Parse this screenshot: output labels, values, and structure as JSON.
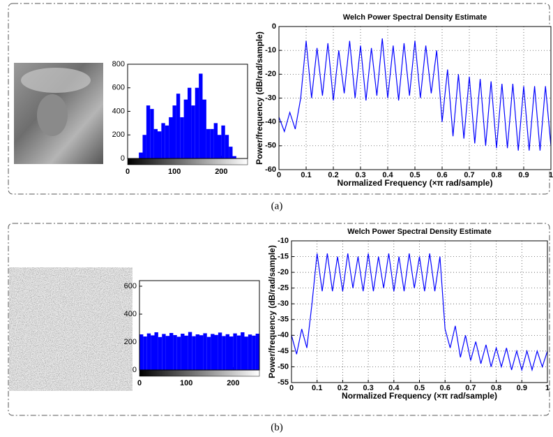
{
  "captions": [
    "(a)",
    "(b)"
  ],
  "chart_data": [
    {
      "type": "histogram",
      "color": "#0000ff",
      "bins": [
        0,
        8,
        16,
        24,
        32,
        40,
        48,
        56,
        64,
        72,
        80,
        88,
        96,
        104,
        112,
        120,
        128,
        136,
        144,
        152,
        160,
        168,
        176,
        184,
        192,
        200,
        208,
        216,
        224,
        232,
        240,
        248,
        256
      ],
      "values": [
        0,
        0,
        0,
        50,
        200,
        450,
        420,
        250,
        230,
        300,
        280,
        350,
        450,
        550,
        350,
        500,
        600,
        450,
        600,
        720,
        500,
        250,
        250,
        300,
        200,
        280,
        200,
        100,
        20,
        0,
        0,
        0
      ],
      "xlim": [
        0,
        256
      ],
      "xticks": [
        0,
        100,
        200
      ],
      "ylim": [
        0,
        800
      ],
      "yticks": [
        0,
        200,
        400,
        600,
        800
      ]
    },
    {
      "type": "line",
      "color": "#0000ff",
      "grid": true,
      "title": "Welch Power Spectral Density Estimate",
      "x_label": "Normalized Frequency  (×π rad/sample)",
      "y_label": "Power/frequency (dB/rad/sample)",
      "x": [
        0,
        0.02,
        0.04,
        0.06,
        0.08,
        0.1,
        0.12,
        0.14,
        0.16,
        0.18,
        0.2,
        0.22,
        0.24,
        0.26,
        0.28,
        0.3,
        0.32,
        0.34,
        0.36,
        0.38,
        0.4,
        0.42,
        0.44,
        0.46,
        0.48,
        0.5,
        0.52,
        0.54,
        0.56,
        0.58,
        0.6,
        0.62,
        0.64,
        0.66,
        0.68,
        0.7,
        0.72,
        0.74,
        0.76,
        0.78,
        0.8,
        0.82,
        0.84,
        0.86,
        0.88,
        0.9,
        0.92,
        0.94,
        0.96,
        0.98,
        1
      ],
      "values": [
        -38,
        -44,
        -36,
        -43,
        -30,
        -6,
        -30,
        -9,
        -29,
        -7,
        -31,
        -10,
        -28,
        -6,
        -30,
        -8,
        -31,
        -9,
        -29,
        -5,
        -30,
        -8,
        -31,
        -7,
        -29,
        -6,
        -30,
        -8,
        -28,
        -10,
        -40,
        -18,
        -46,
        -20,
        -47,
        -21,
        -49,
        -22,
        -50,
        -23,
        -51,
        -24,
        -51,
        -24,
        -52,
        -25,
        -52,
        -25,
        -52,
        -25,
        -50
      ],
      "xlim": [
        0,
        1
      ],
      "xticks": [
        0,
        0.1,
        0.2,
        0.3,
        0.4,
        0.5,
        0.6,
        0.7,
        0.8,
        0.9,
        1
      ],
      "ylim": [
        -60,
        0
      ],
      "yticks": [
        -60,
        -50,
        -40,
        -30,
        -20,
        -10,
        0
      ]
    },
    {
      "type": "histogram",
      "color": "#0000ff",
      "bins": [
        0,
        8,
        16,
        24,
        32,
        40,
        48,
        56,
        64,
        72,
        80,
        88,
        96,
        104,
        112,
        120,
        128,
        136,
        144,
        152,
        160,
        168,
        176,
        184,
        192,
        200,
        208,
        216,
        224,
        232,
        240,
        248,
        256
      ],
      "values": [
        255,
        240,
        262,
        248,
        270,
        236,
        258,
        244,
        265,
        250,
        238,
        260,
        246,
        272,
        242,
        255,
        249,
        263,
        237,
        258,
        251,
        268,
        243,
        256,
        240,
        262,
        247,
        270,
        239,
        254,
        246,
        260
      ],
      "xlim": [
        0,
        256
      ],
      "xticks": [
        0,
        100,
        200
      ],
      "ylim": [
        0,
        640
      ],
      "yticks": [
        0,
        200,
        400,
        600
      ]
    },
    {
      "type": "line",
      "color": "#0000ff",
      "grid": true,
      "title": "Welch Power Spectral Density Estimate",
      "x_label": "Normalized Frequency  (×π rad/sample)",
      "y_label": "Power/frequency (dB/rad/sample)",
      "x": [
        0,
        0.02,
        0.04,
        0.06,
        0.08,
        0.1,
        0.12,
        0.14,
        0.16,
        0.18,
        0.2,
        0.22,
        0.24,
        0.26,
        0.28,
        0.3,
        0.32,
        0.34,
        0.36,
        0.38,
        0.4,
        0.42,
        0.44,
        0.46,
        0.48,
        0.5,
        0.52,
        0.54,
        0.56,
        0.58,
        0.6,
        0.62,
        0.64,
        0.66,
        0.68,
        0.7,
        0.72,
        0.74,
        0.76,
        0.78,
        0.8,
        0.82,
        0.84,
        0.86,
        0.88,
        0.9,
        0.92,
        0.94,
        0.96,
        0.98,
        1
      ],
      "values": [
        -40,
        -46,
        -38,
        -44,
        -30,
        -14,
        -26,
        -14,
        -26,
        -15,
        -26,
        -14,
        -25,
        -15,
        -26,
        -14,
        -26,
        -15,
        -25,
        -14,
        -26,
        -15,
        -26,
        -14,
        -25,
        -15,
        -26,
        -14,
        -26,
        -15,
        -38,
        -44,
        -37,
        -47,
        -40,
        -48,
        -42,
        -49,
        -43,
        -50,
        -44,
        -50,
        -44,
        -51,
        -45,
        -51,
        -45,
        -51,
        -45,
        -50,
        -45
      ],
      "xlim": [
        0,
        1
      ],
      "xticks": [
        0,
        0.1,
        0.2,
        0.3,
        0.4,
        0.5,
        0.6,
        0.7,
        0.8,
        0.9,
        1
      ],
      "ylim": [
        -55,
        -10
      ],
      "yticks": [
        -55,
        -50,
        -45,
        -40,
        -35,
        -30,
        -25,
        -20,
        -15,
        -10
      ]
    }
  ]
}
